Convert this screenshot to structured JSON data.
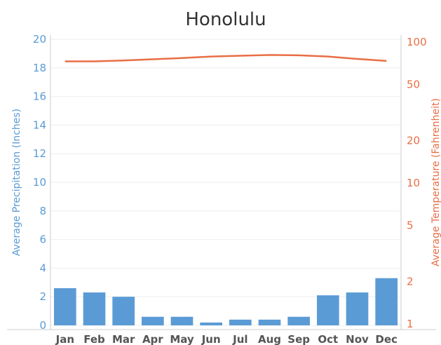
{
  "chart_data": {
    "type": "bar",
    "title": "Honolulu",
    "categories": [
      "Jan",
      "Feb",
      "Mar",
      "Apr",
      "May",
      "Jun",
      "Jul",
      "Aug",
      "Sep",
      "Oct",
      "Nov",
      "Dec"
    ],
    "series": [
      {
        "name": "Average Precipitation (Inches)",
        "type": "bar",
        "axis": "left",
        "values": [
          2.6,
          2.3,
          2.0,
          0.6,
          0.6,
          0.2,
          0.4,
          0.4,
          0.6,
          2.1,
          2.3,
          3.3
        ]
      },
      {
        "name": "Average Temperature (Fahrenheit)",
        "type": "line",
        "axis": "right",
        "values": [
          73,
          73,
          74,
          75.5,
          77,
          79,
          80,
          81,
          80.5,
          79,
          76,
          73.5
        ]
      }
    ],
    "ylabel": "Average Precipitation (Inches)",
    "ylabel_right": "Average Temperature (Fahrenheit)",
    "ylim": [
      0,
      20
    ],
    "yticks": [
      "0",
      "2",
      "4",
      "6",
      "8",
      "10",
      "12",
      "14",
      "16",
      "18",
      "20"
    ],
    "ylim_right": [
      1,
      100
    ],
    "yscale_right": "log",
    "yticks_right": [
      "1",
      "2",
      "5",
      "10",
      "20",
      "50",
      "100"
    ],
    "grid": true,
    "colors": {
      "bars": "#5b9bd5",
      "line": "#e86e45",
      "grid": "#eeeeee",
      "axis": "#cccccc"
    }
  }
}
